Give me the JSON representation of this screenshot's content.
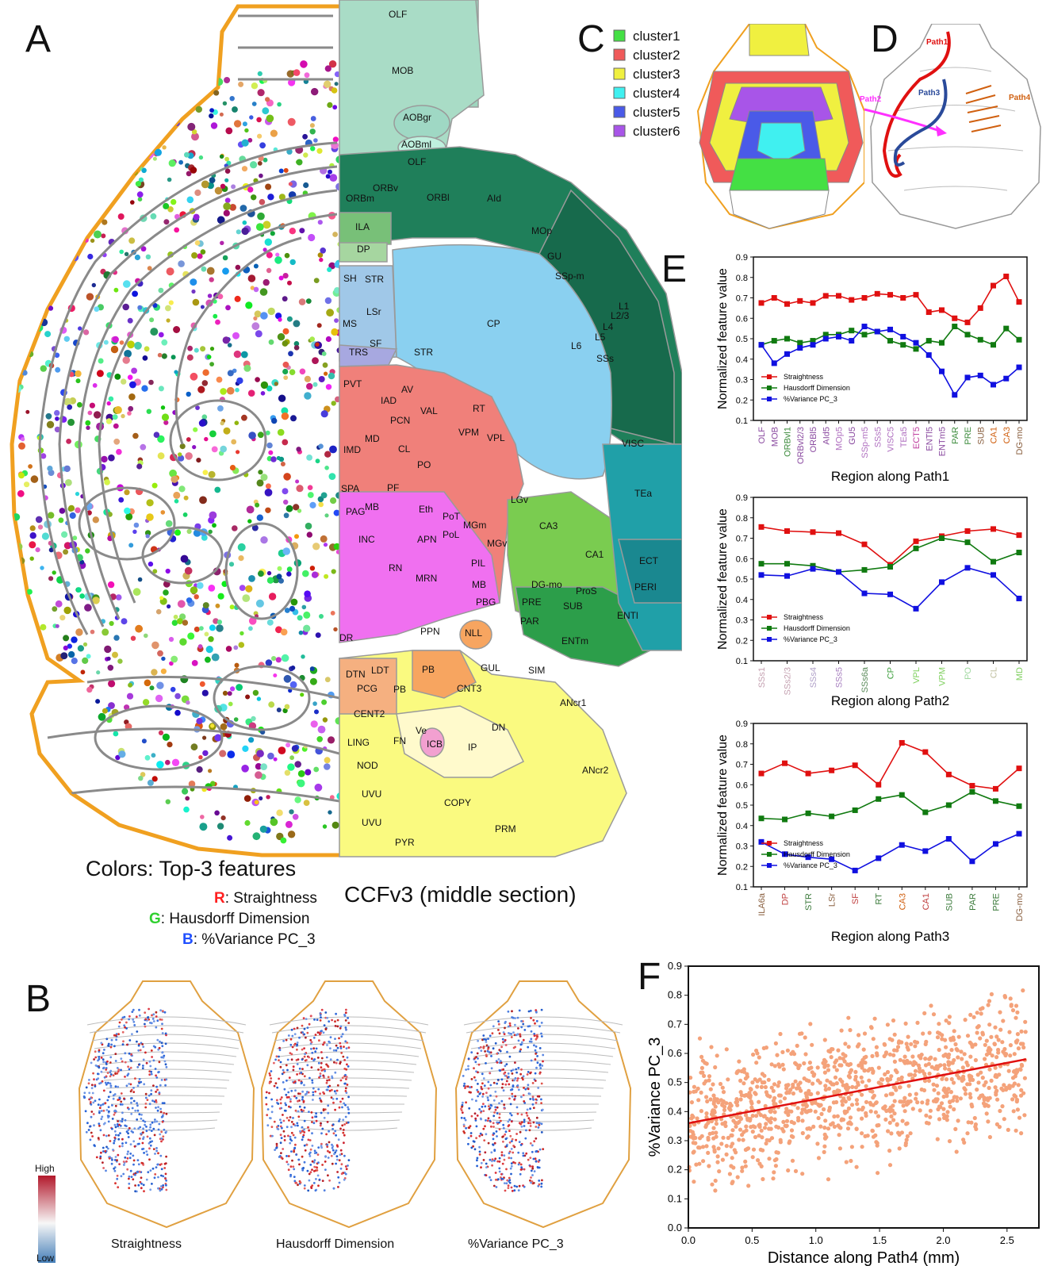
{
  "panels": {
    "a": "A",
    "b": "B",
    "c": "C",
    "d": "D",
    "e": "E",
    "f": "F"
  },
  "panel_a": {
    "caption_title": "Colors: Top-3 features",
    "rgb_legend": [
      {
        "letter": "R",
        "text": ": Straightness",
        "color": "#ff2020"
      },
      {
        "letter": "G",
        "text": ": Hausdorff Dimension",
        "color": "#30d030"
      },
      {
        "letter": "B",
        "text": ":  %Variance PC_3",
        "color": "#2050ff"
      }
    ],
    "ccf_caption": "CCFv3 (middle section)",
    "regions": [
      "OLF",
      "MOB",
      "AOBgr",
      "AOBml",
      "OLF",
      "ORBv",
      "ORBm",
      "ORBl",
      "AId",
      "MOp",
      "GU",
      "SSp-m",
      "ILA",
      "DP",
      "SH",
      "STR",
      "LSr",
      "MS",
      "SF",
      "TRS",
      "STR",
      "CP",
      "L1",
      "L2/3",
      "L4",
      "L5",
      "L6",
      "SSs",
      "PVT",
      "AV",
      "IAD",
      "PCN",
      "VAL",
      "RT",
      "MD",
      "CL",
      "IMD",
      "PO",
      "VPM",
      "VPL",
      "SPA",
      "PF",
      "LGv",
      "PAG",
      "MB",
      "Eth",
      "INC",
      "APN",
      "PoT",
      "PoL",
      "MGm",
      "MGv",
      "RN",
      "MRN",
      "PIL",
      "MB",
      "PBG",
      "VISC",
      "TEa",
      "CA3",
      "CA1",
      "DG-mo",
      "ProS",
      "ECT",
      "PERI",
      "PRE",
      "SUB",
      "PAR",
      "ENTl",
      "ENTm",
      "PPN",
      "NLL",
      "DR",
      "DTN",
      "LDT",
      "PCG",
      "PB",
      "PB",
      "GUL",
      "SIM",
      "CNT3",
      "ANcr1",
      "CENT2",
      "Ve",
      "FN",
      "ICB",
      "IP",
      "DN",
      "LING",
      "NOD",
      "ANcr2",
      "UVU",
      "UVU",
      "COPY",
      "PYR",
      "PRM"
    ]
  },
  "panel_b": {
    "maps": [
      "Straightness",
      "Hausdorff Dimension",
      "%Variance PC_3"
    ],
    "colorbar_high": "High",
    "colorbar_low": "Low"
  },
  "panel_c": {
    "legend": [
      {
        "label": "cluster1",
        "color": "#44e044"
      },
      {
        "label": "cluster2",
        "color": "#f05a5a"
      },
      {
        "label": "cluster3",
        "color": "#f0f040"
      },
      {
        "label": "cluster4",
        "color": "#40f0f0"
      },
      {
        "label": "cluster5",
        "color": "#4a5ae8"
      },
      {
        "label": "cluster6",
        "color": "#a855e8"
      }
    ]
  },
  "panel_d": {
    "paths": [
      {
        "label": "Path1",
        "color": "#e01010"
      },
      {
        "label": "Path2",
        "color": "#ff30ff"
      },
      {
        "label": "Path3",
        "color": "#2a4a9a"
      },
      {
        "label": "Path4",
        "color": "#d06010"
      }
    ]
  },
  "colors": {
    "straightness": "#e01010",
    "hausdorff": "#107a10",
    "variance": "#1010e0",
    "scatter": "#f4a27a",
    "fit": "#e01010"
  },
  "chart_data": [
    {
      "type": "line",
      "id": "path1",
      "ylabel": "Normalized feature value",
      "xlabel": "Region along Path1",
      "ylim": [
        0.1,
        0.9
      ],
      "yticks": [
        "0.1",
        "0.2",
        "0.3",
        "0.4",
        "0.5",
        "0.6",
        "0.7",
        "0.8",
        "0.9"
      ],
      "categories": [
        "OLF",
        "MOB",
        "ORBvl1",
        "ORBvl2/3",
        "ORBl5",
        "AId5",
        "MOp5",
        "GU5",
        "SSp-m5",
        "SSs5",
        "VISC5",
        "TEa5",
        "ECT5",
        "ENTl5",
        "ENTm5",
        "PAR",
        "PRE",
        "SUB",
        "CA1",
        "CA3",
        "DG-mo"
      ],
      "category_colors": [
        "#8a4aa0",
        "#8a4aa0",
        "#3a8a3a",
        "#8a4aa0",
        "#8a4aa0",
        "#8a4aa0",
        "#b070c0",
        "#8a4aa0",
        "#b070c0",
        "#b070c0",
        "#b070c0",
        "#b070c0",
        "#c040a0",
        "#8a4aa0",
        "#8a4aa0",
        "#3a8a3a",
        "#3a8a3a",
        "#8a6040",
        "#d06010",
        "#d06010",
        "#8a6040"
      ],
      "series": [
        {
          "name": "Straightness",
          "color": "#e01010",
          "values": [
            0.675,
            0.7,
            0.67,
            0.685,
            0.675,
            0.71,
            0.71,
            0.69,
            0.7,
            0.72,
            0.715,
            0.7,
            0.715,
            0.63,
            0.64,
            0.6,
            0.58,
            0.65,
            0.76,
            0.805,
            0.68
          ]
        },
        {
          "name": "Hausdorff Dimension",
          "color": "#107a10",
          "values": [
            0.47,
            0.49,
            0.5,
            0.48,
            0.49,
            0.52,
            0.52,
            0.54,
            0.52,
            0.535,
            0.49,
            0.47,
            0.45,
            0.49,
            0.48,
            0.56,
            0.52,
            0.495,
            0.47,
            0.55,
            0.495
          ]
        },
        {
          "name": "%Variance PC_3",
          "color": "#1010e0",
          "values": [
            0.47,
            0.38,
            0.425,
            0.455,
            0.47,
            0.5,
            0.51,
            0.49,
            0.56,
            0.535,
            0.545,
            0.51,
            0.48,
            0.42,
            0.34,
            0.225,
            0.31,
            0.32,
            0.275,
            0.305,
            0.36
          ]
        }
      ]
    },
    {
      "type": "line",
      "id": "path2",
      "ylabel": "Normalized feature value",
      "xlabel": "Region along Path2",
      "ylim": [
        0.1,
        0.9
      ],
      "yticks": [
        "0.1",
        "0.2",
        "0.3",
        "0.4",
        "0.5",
        "0.6",
        "0.7",
        "0.8",
        "0.9"
      ],
      "categories": [
        "SSs1",
        "SSs2/3",
        "SSs4",
        "SSs5",
        "SSs6a",
        "CP",
        "VPL",
        "VPM",
        "PO",
        "CL",
        "MD"
      ],
      "category_colors": [
        "#c4a0b0",
        "#c4a0b0",
        "#b0a0c8",
        "#a880c0",
        "#5a8a5a",
        "#40a040",
        "#80d060",
        "#80d060",
        "#a0d8a0",
        "#c0c0a0",
        "#80d060"
      ],
      "series": [
        {
          "name": "Straightness",
          "color": "#e01010",
          "values": [
            0.755,
            0.735,
            0.73,
            0.725,
            0.67,
            0.57,
            0.685,
            0.71,
            0.735,
            0.745,
            0.715
          ]
        },
        {
          "name": "Hausdorff Dimension",
          "color": "#107a10",
          "values": [
            0.575,
            0.575,
            0.565,
            0.535,
            0.545,
            0.56,
            0.65,
            0.7,
            0.68,
            0.585,
            0.63
          ]
        },
        {
          "name": "%Variance PC_3",
          "color": "#1010e0",
          "values": [
            0.52,
            0.515,
            0.55,
            0.535,
            0.43,
            0.425,
            0.355,
            0.485,
            0.555,
            0.52,
            0.405
          ]
        }
      ]
    },
    {
      "type": "line",
      "id": "path3",
      "ylabel": "Normalized feature value",
      "xlabel": "Region along Path3",
      "ylim": [
        0.1,
        0.9
      ],
      "yticks": [
        "0.1",
        "0.2",
        "0.3",
        "0.4",
        "0.5",
        "0.6",
        "0.7",
        "0.8",
        "0.9"
      ],
      "categories": [
        "ILA6a",
        "DP",
        "STR",
        "LSr",
        "SF",
        "RT",
        "CA3",
        "CA1",
        "SUB",
        "PAR",
        "PRE",
        "DG-mo"
      ],
      "category_colors": [
        "#8a6040",
        "#c04040",
        "#3a7a3a",
        "#8a6040",
        "#c04040",
        "#3a7a3a",
        "#d06010",
        "#c04040",
        "#3a7a3a",
        "#3a7a3a",
        "#3a7a3a",
        "#8a6040"
      ],
      "series": [
        {
          "name": "Straightness",
          "color": "#e01010",
          "values": [
            0.655,
            0.705,
            0.655,
            0.67,
            0.695,
            0.6,
            0.805,
            0.76,
            0.65,
            0.595,
            0.58,
            0.68
          ]
        },
        {
          "name": "Hausdorff Dimension",
          "color": "#107a10",
          "values": [
            0.435,
            0.43,
            0.46,
            0.445,
            0.475,
            0.53,
            0.55,
            0.465,
            0.5,
            0.565,
            0.52,
            0.495
          ]
        },
        {
          "name": "%Variance PC_3",
          "color": "#1010e0",
          "values": [
            0.32,
            0.26,
            0.245,
            0.235,
            0.18,
            0.24,
            0.305,
            0.275,
            0.335,
            0.225,
            0.31,
            0.36
          ]
        }
      ]
    },
    {
      "type": "scatter",
      "id": "path4",
      "xlabel": "Distance along Path4 (mm)",
      "ylabel": "%Variance PC_3",
      "xlim": [
        0.0,
        2.75
      ],
      "ylim": [
        0.0,
        0.9
      ],
      "xticks": [
        "0.0",
        "0.5",
        "1.0",
        "1.5",
        "2.0",
        "2.5"
      ],
      "yticks": [
        "0.0",
        "0.1",
        "0.2",
        "0.3",
        "0.4",
        "0.5",
        "0.6",
        "0.7",
        "0.8",
        "0.9"
      ],
      "fit": {
        "x0": 0.0,
        "y0": 0.36,
        "x1": 2.65,
        "y1": 0.58
      },
      "n_points": 1100
    }
  ]
}
